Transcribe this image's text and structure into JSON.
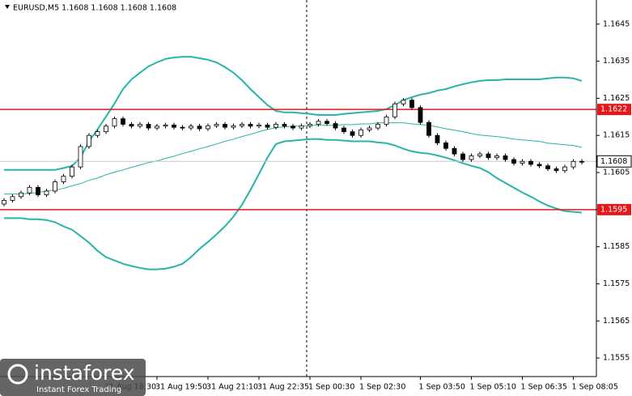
{
  "chart_data": {
    "type": "candlestick",
    "title": "EURUSD,M5  1.1608 1.1608 1.1608 1.1608",
    "categories": [
      null,
      null,
      null,
      null,
      null,
      null,
      null,
      null,
      null,
      null,
      null,
      null,
      "31 Aug 18:30",
      null,
      null,
      null,
      null,
      null,
      "31 Aug 19:50",
      null,
      null,
      null,
      null,
      null,
      "31 Aug 21:10",
      null,
      null,
      null,
      null,
      null,
      "31 Aug 22:35",
      null,
      null,
      null,
      null,
      null,
      "1 Sep 00:30",
      null,
      null,
      null,
      null,
      null,
      "1 Sep 02:30",
      null,
      null,
      null,
      null,
      null,
      null,
      "1 Sep 03:50",
      null,
      null,
      null,
      null,
      null,
      "1 Sep 05:10",
      null,
      null,
      null,
      null,
      null,
      "1 Sep 06:35",
      null,
      null,
      null,
      null,
      null,
      "1 Sep 08:05",
      null
    ],
    "open": [
      1.15965,
      1.15975,
      1.15985,
      1.15995,
      1.1601,
      1.1599,
      1.16,
      1.16025,
      1.1604,
      1.16065,
      1.1612,
      1.1615,
      1.1616,
      1.16175,
      1.16195,
      1.1618,
      1.16175,
      1.1618,
      1.1617,
      1.16175,
      1.16178,
      1.16172,
      1.1617,
      1.16175,
      1.16168,
      1.16176,
      1.1618,
      1.16172,
      1.16176,
      1.1618,
      1.16175,
      1.16178,
      1.16172,
      1.1618,
      1.16175,
      1.1617,
      1.16176,
      1.1618,
      1.16188,
      1.16182,
      1.1617,
      1.1616,
      1.1615,
      1.16165,
      1.1617,
      1.1618,
      1.162,
      1.16235,
      1.16245,
      1.16225,
      1.16185,
      1.1615,
      1.1613,
      1.16115,
      1.161,
      1.16085,
      1.16095,
      1.161,
      1.1609,
      1.16095,
      1.16085,
      1.16075,
      1.1608,
      1.16072,
      1.16068,
      1.1606,
      1.16055,
      1.16065,
      1.1608
    ],
    "high": [
      1.15981,
      1.15991,
      1.16001,
      1.16016,
      1.16016,
      1.16006,
      1.16031,
      1.16046,
      1.16071,
      1.16126,
      1.16156,
      1.16166,
      1.16181,
      1.16201,
      1.16201,
      1.16186,
      1.16186,
      1.16186,
      1.16181,
      1.16184,
      1.16184,
      1.16178,
      1.16181,
      1.16181,
      1.16182,
      1.16186,
      1.16186,
      1.16182,
      1.16186,
      1.16186,
      1.16184,
      1.16184,
      1.16186,
      1.16186,
      1.16181,
      1.16182,
      1.16186,
      1.16194,
      1.16194,
      1.16188,
      1.16176,
      1.16166,
      1.16171,
      1.16176,
      1.16186,
      1.16206,
      1.16241,
      1.16251,
      1.16251,
      1.16231,
      1.16191,
      1.16156,
      1.16136,
      1.16121,
      1.16106,
      1.16101,
      1.16106,
      1.16106,
      1.16101,
      1.16101,
      1.16091,
      1.16086,
      1.16086,
      1.16078,
      1.16074,
      1.16066,
      1.16071,
      1.16086,
      1.16086
    ],
    "low": [
      1.15959,
      1.15969,
      1.15979,
      1.15989,
      1.15984,
      1.15984,
      1.15994,
      1.16019,
      1.16034,
      1.16059,
      1.16114,
      1.16144,
      1.16154,
      1.16169,
      1.16174,
      1.16169,
      1.16169,
      1.16164,
      1.16164,
      1.16169,
      1.16166,
      1.16164,
      1.16164,
      1.16162,
      1.16162,
      1.1617,
      1.16166,
      1.16166,
      1.1617,
      1.16169,
      1.16169,
      1.16166,
      1.16166,
      1.16169,
      1.16164,
      1.16164,
      1.1617,
      1.16174,
      1.16176,
      1.16164,
      1.16154,
      1.16144,
      1.16144,
      1.16159,
      1.16164,
      1.16174,
      1.16194,
      1.16229,
      1.16219,
      1.16179,
      1.16144,
      1.16124,
      1.16109,
      1.16094,
      1.16079,
      1.16079,
      1.16089,
      1.16084,
      1.16084,
      1.16079,
      1.16069,
      1.16069,
      1.16066,
      1.16062,
      1.16054,
      1.16049,
      1.16049,
      1.16059,
      1.16072
    ],
    "close": [
      1.15975,
      1.15985,
      1.15995,
      1.1601,
      1.1599,
      1.16,
      1.16025,
      1.1604,
      1.16065,
      1.1612,
      1.1615,
      1.1616,
      1.16175,
      1.16195,
      1.1618,
      1.16175,
      1.1618,
      1.1617,
      1.16175,
      1.16178,
      1.16172,
      1.1617,
      1.16175,
      1.16168,
      1.16176,
      1.1618,
      1.16172,
      1.16176,
      1.1618,
      1.16175,
      1.16178,
      1.16172,
      1.1618,
      1.16175,
      1.1617,
      1.16176,
      1.1618,
      1.16188,
      1.16182,
      1.1617,
      1.1616,
      1.1615,
      1.16165,
      1.1617,
      1.1618,
      1.162,
      1.16235,
      1.16245,
      1.16225,
      1.16185,
      1.1615,
      1.1613,
      1.16115,
      1.161,
      1.16085,
      1.16095,
      1.161,
      1.1609,
      1.16095,
      1.16085,
      1.16075,
      1.1608,
      1.16072,
      1.16068,
      1.1606,
      1.16055,
      1.16065,
      1.1608,
      1.16078
    ],
    "candle_color": "#000000",
    "bands": [
      {
        "color": "#26b5a8",
        "values": [
          1.16057,
          1.16057,
          1.16057,
          1.16057,
          1.16057,
          1.16057,
          1.16057,
          1.16062,
          1.16068,
          1.1609,
          1.16134,
          1.16166,
          1.16201,
          1.16236,
          1.16275,
          1.16301,
          1.16319,
          1.16336,
          1.16347,
          1.16356,
          1.1636,
          1.16362,
          1.16362,
          1.16358,
          1.16354,
          1.16347,
          1.16334,
          1.16319,
          1.16299,
          1.16275,
          1.16253,
          1.16232,
          1.16216,
          1.16212,
          1.16212,
          1.1621,
          1.16208,
          1.16205,
          1.16205,
          1.16205,
          1.16208,
          1.1621,
          1.16212,
          1.16214,
          1.16216,
          1.16221,
          1.16232,
          1.16245,
          1.16253,
          1.1626,
          1.16264,
          1.16271,
          1.16275,
          1.16282,
          1.16288,
          1.16293,
          1.16297,
          1.16299,
          1.16299,
          1.16301,
          1.16301,
          1.16301,
          1.16301,
          1.16301,
          1.16304,
          1.16306,
          1.16306,
          1.16304,
          1.16297
        ]
      },
      {
        "color": "#26b5a8",
        "values": [
          1.15992,
          1.15992,
          1.15992,
          1.15994,
          1.15996,
          1.16,
          1.16003,
          1.16007,
          1.16014,
          1.1602,
          1.16029,
          1.16035,
          1.16044,
          1.16051,
          1.16057,
          1.16064,
          1.1607,
          1.16077,
          1.16081,
          1.16088,
          1.16094,
          1.16101,
          1.16107,
          1.16114,
          1.1612,
          1.16127,
          1.16134,
          1.1614,
          1.16147,
          1.16153,
          1.1616,
          1.16166,
          1.16171,
          1.16173,
          1.16175,
          1.16175,
          1.16177,
          1.16177,
          1.16177,
          1.16177,
          1.16179,
          1.16179,
          1.16181,
          1.16181,
          1.16184,
          1.16184,
          1.16184,
          1.16184,
          1.16181,
          1.16179,
          1.16177,
          1.16173,
          1.16168,
          1.16164,
          1.1616,
          1.16155,
          1.16151,
          1.16149,
          1.16147,
          1.16144,
          1.1614,
          1.16138,
          1.16136,
          1.16134,
          1.16129,
          1.16127,
          1.16125,
          1.16123,
          1.16118
        ]
      },
      {
        "color": "#26b5a8",
        "values": [
          1.15927,
          1.15927,
          1.15927,
          1.15924,
          1.15924,
          1.15922,
          1.15916,
          1.15905,
          1.15896,
          1.15879,
          1.15861,
          1.15839,
          1.15822,
          1.15813,
          1.15804,
          1.15798,
          1.15793,
          1.15789,
          1.15789,
          1.15791,
          1.15796,
          1.15804,
          1.15822,
          1.15844,
          1.15863,
          1.15883,
          1.15905,
          1.15931,
          1.15963,
          1.16003,
          1.16046,
          1.1609,
          1.16127,
          1.16134,
          1.16136,
          1.16138,
          1.1614,
          1.1614,
          1.16138,
          1.16138,
          1.16136,
          1.16134,
          1.16134,
          1.16134,
          1.16131,
          1.16129,
          1.16123,
          1.16114,
          1.16107,
          1.16103,
          1.16101,
          1.16096,
          1.1609,
          1.16083,
          1.16075,
          1.16068,
          1.16062,
          1.16051,
          1.16035,
          1.16022,
          1.16009,
          1.15996,
          1.15985,
          1.15972,
          1.15961,
          1.15953,
          1.15946,
          1.15944,
          1.15942
        ]
      }
    ],
    "levels": [
      {
        "value": 1.1622,
        "color": "#e01a1a"
      },
      {
        "value": 1.1595,
        "color": "#e01a1a"
      }
    ],
    "last_price": 1.1608,
    "ylim": [
      1.155,
      1.16515
    ],
    "yticks": [
      1.1555,
      1.1565,
      1.1575,
      1.1585,
      1.1595,
      1.1605,
      1.1615,
      1.1625,
      1.1635,
      1.1645
    ]
  },
  "logo": {
    "brand": "instaforex",
    "tagline": "Instant Forex Trading"
  }
}
